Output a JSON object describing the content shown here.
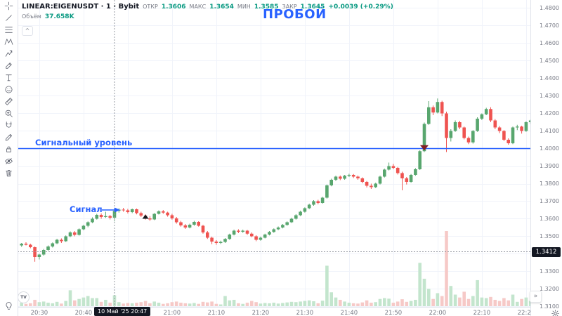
{
  "header": {
    "title": "LINEAR:EIGENUSDT · 1 · Bybit",
    "open_label": "ОТКР",
    "open": "1.3606",
    "high_label": "МАКС",
    "high": "1.3654",
    "low_label": "МИН",
    "low": "1.3585",
    "close_label": "ЗАКР",
    "close": "1.3645",
    "change": "+0.0039 (+0.29%)",
    "volume_label": "Объём",
    "volume_value": "37.658K",
    "collapse_glyph": "^"
  },
  "annotations": {
    "breakout": "ПРОБОЙ",
    "signal": "Сигнал",
    "signal_level": "Сигнальный уровень"
  },
  "crosshair_labels": {
    "price": "1.3412",
    "time": "10 Май '25  20:47"
  },
  "axes": {
    "price_ticks": [
      "1.4800",
      "1.4700",
      "1.4600",
      "1.4500",
      "1.4400",
      "1.4300",
      "1.4200",
      "1.4100",
      "1.4000",
      "1.3900",
      "1.3800",
      "1.3700",
      "1.3600",
      "1.3500",
      "1.3400",
      "1.3300",
      "1.3200",
      "1.3100"
    ],
    "time_ticks": [
      "20:30",
      "20:40",
      "20:50",
      "21:00",
      "21:10",
      "21:20",
      "21:30",
      "21:40",
      "21:50",
      "22:00",
      "22:10",
      "22:20"
    ]
  },
  "toolbar": {
    "items": [
      {
        "name": "crosshair"
      },
      {
        "name": "trend-line"
      },
      {
        "name": "fib-retracement"
      },
      {
        "name": "xabcd-pattern"
      },
      {
        "name": "forecast"
      },
      {
        "name": "brush"
      },
      {
        "name": "text"
      },
      {
        "name": "emoji"
      },
      {
        "name": "ruler"
      },
      {
        "name": "zoom-in"
      },
      {
        "name": "magnet"
      },
      {
        "name": "stay-in-drawing-mode"
      },
      {
        "name": "lock-all-drawings"
      },
      {
        "name": "hide-all-drawings"
      },
      {
        "name": "remove-objects"
      }
    ]
  },
  "buttons": {
    "goto_realtime": "»"
  },
  "colors": {
    "up": "#58a66e",
    "down": "#ef5350",
    "vol_up": "#c3e5cd",
    "vol_down": "#f6c9c7",
    "grid": "#f0f3fa",
    "accent": "#2962ff",
    "crosshair": "#9598a1",
    "header_value": "#089981",
    "axis_text": "#787b86",
    "badge_bg": "#131722",
    "marker_signal": "#14181c",
    "marker_breakout": "#7e1f24"
  },
  "chart_data": {
    "type": "candlestick",
    "symbol": "EIGENUSDT",
    "exchange": "Bybit",
    "interval_minutes": 1,
    "time_start": "20:26",
    "signal_level": 1.4,
    "price_range": [
      1.31,
      1.485
    ],
    "crosshair": {
      "index": 21,
      "price": 1.3412,
      "time": "20:47"
    },
    "markers": [
      {
        "index": 28,
        "shape": "triangle-up",
        "price": 1.362,
        "color_key": "marker_signal"
      },
      {
        "index": 91,
        "shape": "triangle-down",
        "price": 1.4005,
        "color_key": "marker_breakout"
      }
    ],
    "candles": [
      [
        1.3448,
        1.3462,
        1.344,
        1.3458,
        12
      ],
      [
        1.3458,
        1.3466,
        1.3448,
        1.3452,
        8
      ],
      [
        1.3452,
        1.3458,
        1.3432,
        1.3438,
        10
      ],
      [
        1.3438,
        1.3442,
        1.3355,
        1.3382,
        22
      ],
      [
        1.3382,
        1.34,
        1.3368,
        1.3396,
        14
      ],
      [
        1.3396,
        1.3428,
        1.339,
        1.3422,
        16
      ],
      [
        1.3422,
        1.3448,
        1.3418,
        1.3442,
        12
      ],
      [
        1.3442,
        1.3465,
        1.3436,
        1.346,
        10
      ],
      [
        1.346,
        1.3486,
        1.3455,
        1.348,
        15
      ],
      [
        1.348,
        1.3488,
        1.3462,
        1.3472,
        9
      ],
      [
        1.3472,
        1.3505,
        1.3468,
        1.35,
        18
      ],
      [
        1.35,
        1.3528,
        1.3495,
        1.3522,
        55
      ],
      [
        1.3522,
        1.353,
        1.35,
        1.3508,
        20
      ],
      [
        1.3508,
        1.3545,
        1.3504,
        1.354,
        25
      ],
      [
        1.354,
        1.3565,
        1.3535,
        1.356,
        30
      ],
      [
        1.356,
        1.3585,
        1.3552,
        1.358,
        35
      ],
      [
        1.358,
        1.3608,
        1.3575,
        1.36,
        28
      ],
      [
        1.36,
        1.3628,
        1.3595,
        1.3622,
        28
      ],
      [
        1.3622,
        1.363,
        1.36,
        1.361,
        15
      ],
      [
        1.361,
        1.364,
        1.3605,
        1.3615,
        22
      ],
      [
        1.3615,
        1.3622,
        1.3596,
        1.3606,
        12
      ],
      [
        1.3606,
        1.3654,
        1.3585,
        1.3645,
        37.658
      ],
      [
        1.3645,
        1.366,
        1.3635,
        1.3652,
        14
      ],
      [
        1.3652,
        1.3662,
        1.364,
        1.3648,
        9
      ],
      [
        1.3648,
        1.3656,
        1.363,
        1.3638,
        11
      ],
      [
        1.3638,
        1.3658,
        1.3632,
        1.3654,
        10
      ],
      [
        1.3654,
        1.3658,
        1.3625,
        1.3632,
        12
      ],
      [
        1.3632,
        1.364,
        1.361,
        1.3618,
        14
      ],
      [
        1.3618,
        1.3625,
        1.3595,
        1.3602,
        18
      ],
      [
        1.3602,
        1.3615,
        1.3588,
        1.3596,
        10
      ],
      [
        1.3596,
        1.3632,
        1.3592,
        1.3628,
        16
      ],
      [
        1.3628,
        1.3648,
        1.3624,
        1.3642,
        12
      ],
      [
        1.3642,
        1.365,
        1.3628,
        1.3635,
        8
      ],
      [
        1.3635,
        1.364,
        1.3612,
        1.362,
        10
      ],
      [
        1.362,
        1.3628,
        1.3595,
        1.3602,
        14
      ],
      [
        1.3602,
        1.361,
        1.3572,
        1.358,
        16
      ],
      [
        1.358,
        1.3588,
        1.3555,
        1.3562,
        12
      ],
      [
        1.3562,
        1.357,
        1.3542,
        1.355,
        10
      ],
      [
        1.355,
        1.3572,
        1.3545,
        1.3566,
        9
      ],
      [
        1.3566,
        1.3588,
        1.356,
        1.3582,
        11
      ],
      [
        1.3582,
        1.3586,
        1.3555,
        1.356,
        8
      ],
      [
        1.356,
        1.3565,
        1.3515,
        1.3522,
        15
      ],
      [
        1.3522,
        1.353,
        1.3485,
        1.3492,
        13
      ],
      [
        1.3492,
        1.3498,
        1.3455,
        1.347,
        16
      ],
      [
        1.347,
        1.3478,
        1.3452,
        1.3462,
        8
      ],
      [
        1.3462,
        1.3475,
        1.3456,
        1.3468,
        6
      ],
      [
        1.3468,
        1.349,
        1.3462,
        1.3485,
        35
      ],
      [
        1.3485,
        1.3515,
        1.348,
        1.351,
        20
      ],
      [
        1.351,
        1.3538,
        1.3505,
        1.3532,
        22
      ],
      [
        1.3532,
        1.354,
        1.3518,
        1.3526,
        10
      ],
      [
        1.3526,
        1.3538,
        1.352,
        1.3532,
        8
      ],
      [
        1.3532,
        1.3536,
        1.3508,
        1.3515,
        12
      ],
      [
        1.3515,
        1.3522,
        1.3495,
        1.35,
        18
      ],
      [
        1.35,
        1.3506,
        1.3472,
        1.348,
        14
      ],
      [
        1.348,
        1.3498,
        1.3475,
        1.3492,
        9
      ],
      [
        1.3492,
        1.3515,
        1.3488,
        1.351,
        11
      ],
      [
        1.351,
        1.353,
        1.3505,
        1.3525,
        10
      ],
      [
        1.3525,
        1.3545,
        1.352,
        1.354,
        12
      ],
      [
        1.354,
        1.3556,
        1.3535,
        1.355,
        9
      ],
      [
        1.355,
        1.357,
        1.3545,
        1.3565,
        11
      ],
      [
        1.3565,
        1.3585,
        1.356,
        1.358,
        13
      ],
      [
        1.358,
        1.3606,
        1.3576,
        1.36,
        15
      ],
      [
        1.36,
        1.3626,
        1.3595,
        1.362,
        14
      ],
      [
        1.362,
        1.3646,
        1.3615,
        1.364,
        16
      ],
      [
        1.364,
        1.3665,
        1.3635,
        1.366,
        18
      ],
      [
        1.366,
        1.3686,
        1.3655,
        1.368,
        20
      ],
      [
        1.368,
        1.3706,
        1.3674,
        1.37,
        17
      ],
      [
        1.37,
        1.3708,
        1.3682,
        1.369,
        10
      ],
      [
        1.369,
        1.3725,
        1.3686,
        1.372,
        19
      ],
      [
        1.372,
        1.3795,
        1.3715,
        1.379,
        140
      ],
      [
        1.379,
        1.3828,
        1.3785,
        1.3822,
        48
      ],
      [
        1.3822,
        1.3845,
        1.3815,
        1.384,
        30
      ],
      [
        1.384,
        1.3846,
        1.382,
        1.3828,
        22
      ],
      [
        1.3828,
        1.385,
        1.3822,
        1.3845,
        16
      ],
      [
        1.3845,
        1.3856,
        1.3838,
        1.385,
        12
      ],
      [
        1.385,
        1.3855,
        1.3832,
        1.384,
        10
      ],
      [
        1.384,
        1.3846,
        1.3822,
        1.383,
        9
      ],
      [
        1.383,
        1.3836,
        1.3802,
        1.381,
        13
      ],
      [
        1.381,
        1.3815,
        1.3778,
        1.3788,
        20
      ],
      [
        1.3788,
        1.38,
        1.377,
        1.378,
        12
      ],
      [
        1.378,
        1.3805,
        1.3775,
        1.38,
        14
      ],
      [
        1.38,
        1.3845,
        1.3795,
        1.384,
        25
      ],
      [
        1.384,
        1.3885,
        1.3835,
        1.388,
        28
      ],
      [
        1.388,
        1.392,
        1.3875,
        1.39,
        26
      ],
      [
        1.39,
        1.3912,
        1.3882,
        1.389,
        12
      ],
      [
        1.389,
        1.3895,
        1.3852,
        1.386,
        16
      ],
      [
        1.386,
        1.3868,
        1.3762,
        1.383,
        24
      ],
      [
        1.383,
        1.3838,
        1.3795,
        1.381,
        15
      ],
      [
        1.381,
        1.3855,
        1.3805,
        1.385,
        18
      ],
      [
        1.385,
        1.3888,
        1.3845,
        1.3882,
        22
      ],
      [
        1.3882,
        1.399,
        1.3878,
        1.3985,
        150
      ],
      [
        1.3985,
        1.4148,
        1.398,
        1.414,
        95
      ],
      [
        1.414,
        1.427,
        1.4135,
        1.4235,
        60
      ],
      [
        1.4235,
        1.4245,
        1.419,
        1.4205,
        25
      ],
      [
        1.4205,
        1.4285,
        1.42,
        1.4265,
        45
      ],
      [
        1.4265,
        1.4272,
        1.4185,
        1.42,
        35
      ],
      [
        1.42,
        1.421,
        1.398,
        1.406,
        260
      ],
      [
        1.406,
        1.411,
        1.404,
        1.41,
        70
      ],
      [
        1.41,
        1.416,
        1.4095,
        1.415,
        40
      ],
      [
        1.415,
        1.4158,
        1.411,
        1.412,
        30
      ],
      [
        1.412,
        1.4125,
        1.4052,
        1.406,
        50
      ],
      [
        1.406,
        1.4068,
        1.4025,
        1.4035,
        25
      ],
      [
        1.4035,
        1.4105,
        1.4028,
        1.41,
        35
      ],
      [
        1.41,
        1.4178,
        1.4095,
        1.417,
        90
      ],
      [
        1.417,
        1.42,
        1.4162,
        1.4195,
        30
      ],
      [
        1.4195,
        1.4232,
        1.419,
        1.4225,
        28
      ],
      [
        1.4225,
        1.4235,
        1.415,
        1.416,
        32
      ],
      [
        1.416,
        1.4168,
        1.411,
        1.412,
        22
      ],
      [
        1.412,
        1.4128,
        1.4088,
        1.41,
        18
      ],
      [
        1.41,
        1.4105,
        1.4042,
        1.405,
        28
      ],
      [
        1.405,
        1.4058,
        1.4022,
        1.403,
        20
      ],
      [
        1.403,
        1.4125,
        1.4025,
        1.412,
        40
      ],
      [
        1.412,
        1.4135,
        1.4105,
        1.4125,
        15
      ],
      [
        1.4125,
        1.413,
        1.4085,
        1.41,
        25
      ],
      [
        1.41,
        1.4155,
        1.4095,
        1.415,
        30
      ],
      [
        1.415,
        1.4165,
        1.414,
        1.416,
        18
      ],
      [
        1.416,
        1.4165,
        1.405,
        1.4065,
        35
      ],
      [
        1.4065,
        1.407,
        1.3965,
        1.3995,
        28
      ]
    ]
  }
}
